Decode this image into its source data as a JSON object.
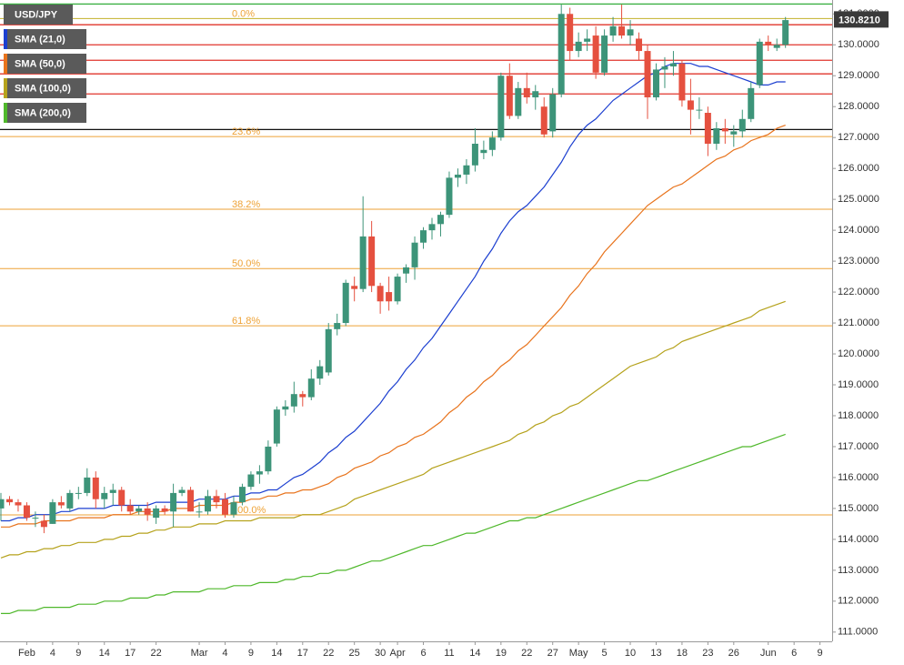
{
  "chart_data": {
    "type": "candlestick",
    "title": "USD/JPY",
    "categories": [
      null,
      null,
      null,
      "Feb",
      null,
      null,
      "4",
      null,
      null,
      "9",
      null,
      null,
      "14",
      null,
      null,
      "17",
      null,
      null,
      "22",
      null,
      null,
      null,
      null,
      "Mar",
      null,
      null,
      "4",
      null,
      null,
      "9",
      null,
      null,
      "14",
      null,
      null,
      "17",
      null,
      null,
      "22",
      null,
      null,
      "25",
      null,
      null,
      "30",
      null,
      "Apr",
      null,
      null,
      "6",
      null,
      null,
      "11",
      null,
      null,
      "14",
      null,
      null,
      "19",
      null,
      null,
      "22",
      null,
      null,
      "27",
      null,
      null,
      "May",
      null,
      null,
      "5",
      null,
      null,
      "10",
      null,
      null,
      "13",
      null,
      null,
      "18",
      null,
      null,
      "23",
      null,
      null,
      "26",
      null,
      null,
      null,
      "Jun",
      null,
      null,
      "6",
      null,
      null,
      "9"
    ],
    "open": [
      115.0,
      115.3,
      115.2,
      115.1,
      114.7,
      114.6,
      114.5,
      115.2,
      115.0,
      115.5,
      115.5,
      116.0,
      115.3,
      115.5,
      115.6,
      115.1,
      114.9,
      115.0,
      114.7,
      115.0,
      114.9,
      115.5,
      115.6,
      114.9,
      114.9,
      115.4,
      115.3,
      114.8,
      115.2,
      115.7,
      116.1,
      116.2,
      117.1,
      118.2,
      118.3,
      118.7,
      118.6,
      119.2,
      119.4,
      120.8,
      121.0,
      122.2,
      122.1,
      123.8,
      122.2,
      122.0,
      121.7,
      122.6,
      122.8,
      123.6,
      124.0,
      124.2,
      124.5,
      125.7,
      125.8,
      126.1,
      126.5,
      126.6,
      127.0,
      129.0,
      127.7,
      128.6,
      128.3,
      128.0,
      127.2,
      128.4,
      131.0,
      129.8,
      130.1,
      130.3,
      129.1,
      130.3,
      130.6,
      130.3,
      130.2,
      129.8,
      128.3,
      129.2,
      129.3,
      129.4,
      128.2,
      127.9,
      127.8,
      126.8,
      127.3,
      127.1,
      127.2,
      127.6,
      128.7,
      130.1,
      129.9,
      130.0,
      null,
      null,
      null,
      null
    ],
    "high": [
      115.5,
      115.4,
      115.3,
      115.2,
      114.9,
      114.8,
      115.3,
      115.4,
      115.6,
      115.7,
      116.3,
      116.2,
      115.7,
      115.8,
      115.7,
      115.3,
      115.1,
      115.2,
      115.1,
      115.1,
      115.8,
      115.7,
      115.7,
      115.2,
      115.6,
      115.6,
      115.5,
      115.4,
      115.8,
      116.2,
      116.4,
      117.2,
      118.3,
      118.5,
      119.1,
      118.8,
      119.5,
      119.8,
      121.0,
      121.3,
      122.4,
      122.5,
      125.1,
      124.3,
      122.3,
      122.5,
      122.6,
      122.9,
      123.8,
      124.1,
      124.4,
      124.6,
      125.9,
      126.0,
      126.3,
      127.3,
      126.9,
      127.2,
      129.1,
      129.4,
      128.8,
      129.1,
      128.7,
      128.3,
      128.6,
      131.3,
      131.2,
      130.4,
      130.5,
      130.6,
      130.5,
      130.9,
      131.3,
      130.8,
      130.4,
      130.0,
      129.4,
      129.6,
      129.8,
      129.5,
      128.9,
      128.3,
      128.0,
      127.5,
      127.6,
      127.4,
      127.9,
      128.8,
      130.2,
      130.3,
      130.2,
      130.9,
      null,
      null,
      null,
      null
    ],
    "low": [
      114.6,
      115.1,
      114.9,
      114.6,
      114.4,
      114.2,
      114.5,
      115.0,
      114.9,
      115.3,
      115.4,
      115.0,
      115.0,
      115.1,
      114.9,
      114.8,
      114.8,
      114.6,
      114.5,
      114.8,
      114.4,
      115.4,
      114.9,
      114.7,
      114.8,
      115.0,
      114.7,
      114.7,
      115.1,
      115.6,
      115.8,
      116.1,
      117.0,
      118.0,
      118.1,
      118.3,
      118.5,
      119.0,
      119.3,
      120.6,
      120.9,
      121.7,
      122.0,
      122.0,
      121.3,
      121.4,
      121.6,
      122.3,
      122.4,
      123.4,
      123.7,
      123.8,
      124.4,
      125.4,
      125.5,
      125.9,
      126.3,
      126.4,
      126.9,
      127.6,
      127.6,
      128.1,
      127.9,
      127.0,
      127.0,
      128.3,
      129.5,
      129.6,
      129.8,
      128.9,
      129.0,
      130.1,
      130.2,
      130.0,
      129.5,
      127.6,
      128.2,
      128.6,
      129.0,
      128.0,
      127.1,
      127.6,
      126.4,
      126.6,
      126.8,
      126.7,
      127.0,
      127.5,
      128.6,
      129.8,
      129.8,
      129.9,
      null,
      null,
      null,
      null
    ],
    "close": [
      115.3,
      115.2,
      115.1,
      114.7,
      114.7,
      114.4,
      115.2,
      115.1,
      115.5,
      115.5,
      116.0,
      115.3,
      115.5,
      115.6,
      115.1,
      114.9,
      115.0,
      114.8,
      115.0,
      114.9,
      115.5,
      115.6,
      114.9,
      114.9,
      115.4,
      115.2,
      114.8,
      115.2,
      115.7,
      116.1,
      116.2,
      117.0,
      118.2,
      118.3,
      118.7,
      118.6,
      119.2,
      119.6,
      120.8,
      121.0,
      122.3,
      122.1,
      123.8,
      122.2,
      121.7,
      121.7,
      122.5,
      122.8,
      123.6,
      124.0,
      124.2,
      124.5,
      125.7,
      125.8,
      126.1,
      126.8,
      126.6,
      127.0,
      129.0,
      127.7,
      128.6,
      128.3,
      128.5,
      127.1,
      128.4,
      131.0,
      129.8,
      130.1,
      130.2,
      129.1,
      130.3,
      130.6,
      130.3,
      130.5,
      129.8,
      128.3,
      129.2,
      129.3,
      129.4,
      128.2,
      127.9,
      127.9,
      126.8,
      127.3,
      127.2,
      127.2,
      127.6,
      128.6,
      130.1,
      130.0,
      130.0,
      130.8,
      null,
      null,
      null,
      null
    ],
    "up_color": "#3d9479",
    "down_color": "#e5503f",
    "series": [
      {
        "name": "SMA (21,0)",
        "color": "#1c3fd0",
        "values": [
          114.6,
          114.6,
          114.7,
          114.7,
          114.8,
          114.8,
          114.8,
          114.9,
          114.9,
          115.0,
          115.0,
          115.0,
          115.0,
          115.1,
          115.1,
          115.1,
          115.1,
          115.1,
          115.2,
          115.2,
          115.2,
          115.2,
          115.2,
          115.3,
          115.3,
          115.3,
          115.3,
          115.4,
          115.4,
          115.5,
          115.5,
          115.6,
          115.6,
          115.8,
          116.0,
          116.1,
          116.3,
          116.5,
          116.8,
          117.0,
          117.3,
          117.5,
          117.8,
          118.1,
          118.4,
          118.8,
          119.1,
          119.5,
          119.8,
          120.2,
          120.5,
          120.9,
          121.3,
          121.7,
          122.1,
          122.5,
          123.0,
          123.4,
          123.9,
          124.3,
          124.6,
          124.8,
          125.1,
          125.4,
          125.8,
          126.2,
          126.7,
          127.1,
          127.4,
          127.6,
          127.9,
          128.2,
          128.4,
          128.6,
          128.8,
          129.0,
          129.1,
          129.3,
          129.4,
          129.4,
          129.4,
          129.3,
          129.3,
          129.2,
          129.1,
          129.0,
          128.9,
          128.8,
          128.7,
          128.7,
          128.8,
          128.8,
          null,
          null,
          null,
          null
        ]
      },
      {
        "name": "SMA (50,0)",
        "color": "#e8731c",
        "values": [
          114.4,
          114.4,
          114.5,
          114.5,
          114.5,
          114.6,
          114.6,
          114.6,
          114.6,
          114.7,
          114.7,
          114.7,
          114.7,
          114.8,
          114.8,
          114.8,
          114.9,
          114.9,
          114.9,
          114.9,
          115.0,
          115.0,
          115.0,
          115.1,
          115.1,
          115.1,
          115.1,
          115.2,
          115.2,
          115.3,
          115.3,
          115.4,
          115.4,
          115.5,
          115.5,
          115.6,
          115.6,
          115.7,
          115.8,
          116.0,
          116.1,
          116.3,
          116.4,
          116.5,
          116.7,
          116.8,
          117.0,
          117.1,
          117.3,
          117.4,
          117.6,
          117.8,
          118.1,
          118.3,
          118.6,
          118.8,
          119.1,
          119.3,
          119.6,
          119.8,
          120.1,
          120.3,
          120.6,
          120.9,
          121.2,
          121.5,
          121.9,
          122.2,
          122.6,
          122.9,
          123.3,
          123.6,
          123.9,
          124.2,
          124.5,
          124.8,
          125.0,
          125.2,
          125.4,
          125.5,
          125.7,
          125.9,
          126.1,
          126.3,
          126.4,
          126.6,
          126.7,
          126.9,
          127.0,
          127.1,
          127.3,
          127.4,
          null,
          null,
          null,
          null
        ]
      },
      {
        "name": "SMA (100,0)",
        "color": "#b5a21c",
        "values": [
          113.4,
          113.5,
          113.5,
          113.6,
          113.6,
          113.7,
          113.7,
          113.8,
          113.8,
          113.9,
          113.9,
          113.9,
          114.0,
          114.0,
          114.1,
          114.1,
          114.2,
          114.2,
          114.3,
          114.3,
          114.4,
          114.4,
          114.4,
          114.5,
          114.5,
          114.5,
          114.6,
          114.6,
          114.6,
          114.6,
          114.7,
          114.7,
          114.7,
          114.7,
          114.7,
          114.8,
          114.8,
          114.8,
          114.9,
          115.0,
          115.1,
          115.3,
          115.4,
          115.5,
          115.6,
          115.7,
          115.8,
          115.9,
          116.0,
          116.1,
          116.3,
          116.4,
          116.5,
          116.6,
          116.7,
          116.8,
          116.9,
          117.0,
          117.1,
          117.2,
          117.4,
          117.5,
          117.7,
          117.8,
          118.0,
          118.1,
          118.3,
          118.4,
          118.6,
          118.8,
          119.0,
          119.2,
          119.4,
          119.6,
          119.7,
          119.8,
          119.9,
          120.1,
          120.2,
          120.4,
          120.5,
          120.6,
          120.7,
          120.8,
          120.9,
          121.0,
          121.1,
          121.2,
          121.4,
          121.5,
          121.6,
          121.7,
          null,
          null,
          null,
          null
        ]
      },
      {
        "name": "SMA (200,0)",
        "color": "#4fb82b",
        "values": [
          111.6,
          111.6,
          111.7,
          111.7,
          111.7,
          111.8,
          111.8,
          111.8,
          111.8,
          111.9,
          111.9,
          111.9,
          112.0,
          112.0,
          112.0,
          112.1,
          112.1,
          112.1,
          112.2,
          112.2,
          112.3,
          112.3,
          112.3,
          112.3,
          112.4,
          112.4,
          112.4,
          112.5,
          112.5,
          112.5,
          112.6,
          112.6,
          112.6,
          112.7,
          112.7,
          112.8,
          112.8,
          112.9,
          112.9,
          113.0,
          113.0,
          113.1,
          113.2,
          113.3,
          113.3,
          113.4,
          113.5,
          113.6,
          113.7,
          113.8,
          113.8,
          113.9,
          114.0,
          114.1,
          114.2,
          114.2,
          114.3,
          114.4,
          114.5,
          114.6,
          114.6,
          114.7,
          114.7,
          114.8,
          114.9,
          115.0,
          115.1,
          115.2,
          115.3,
          115.4,
          115.5,
          115.6,
          115.7,
          115.8,
          115.9,
          115.9,
          116.0,
          116.1,
          116.2,
          116.3,
          116.4,
          116.5,
          116.6,
          116.7,
          116.8,
          116.9,
          117.0,
          117.0,
          117.1,
          117.2,
          117.3,
          117.4,
          null,
          null,
          null,
          null
        ]
      }
    ],
    "fib_levels": [
      {
        "label": "0.0%",
        "value": 130.85,
        "color": "#c2b12a"
      },
      {
        "label": "23.6%",
        "value": 127.03,
        "color": "#eea236"
      },
      {
        "label": "38.2%",
        "value": 124.68,
        "color": "#eea236"
      },
      {
        "label": "50.0%",
        "value": 122.76,
        "color": "#eea236"
      },
      {
        "label": "61.8%",
        "value": 120.91,
        "color": "#eea236"
      },
      {
        "label": "100.0%",
        "value": 114.79,
        "color": "#eea236"
      }
    ],
    "horizontal_lines": [
      {
        "value": 131.32,
        "color": "#3cb043"
      },
      {
        "value": 130.65,
        "color": "#e0342b"
      },
      {
        "value": 130.0,
        "color": "#e0342b"
      },
      {
        "value": 129.5,
        "color": "#e0342b"
      },
      {
        "value": 129.06,
        "color": "#e0342b"
      },
      {
        "value": 128.41,
        "color": "#e0342b"
      },
      {
        "value": 127.26,
        "color": "#111111"
      }
    ],
    "last_price": {
      "value": 130.821,
      "label": "130.8210"
    },
    "ylim": [
      110.7,
      131.45
    ],
    "yticks": [
      {
        "value": 111,
        "label": "111.0000"
      },
      {
        "value": 112,
        "label": "112.0000"
      },
      {
        "value": 113,
        "label": "113.0000"
      },
      {
        "value": 114,
        "label": "114.0000"
      },
      {
        "value": 115,
        "label": "115.0000"
      },
      {
        "value": 116,
        "label": "116.0000"
      },
      {
        "value": 117,
        "label": "117.0000"
      },
      {
        "value": 118,
        "label": "118.0000"
      },
      {
        "value": 119,
        "label": "119.0000"
      },
      {
        "value": 120,
        "label": "120.0000"
      },
      {
        "value": 121,
        "label": "121.0000"
      },
      {
        "value": 122,
        "label": "122.0000"
      },
      {
        "value": 123,
        "label": "123.0000"
      },
      {
        "value": 124,
        "label": "124.0000"
      },
      {
        "value": 125,
        "label": "125.0000"
      },
      {
        "value": 126,
        "label": "126.0000"
      },
      {
        "value": 127,
        "label": "127.0000"
      },
      {
        "value": 128,
        "label": "128.0000"
      },
      {
        "value": 129,
        "label": "129.0000"
      },
      {
        "value": 130,
        "label": "130.0000"
      },
      {
        "value": 131,
        "label": "131.0000"
      }
    ],
    "grid": false
  }
}
